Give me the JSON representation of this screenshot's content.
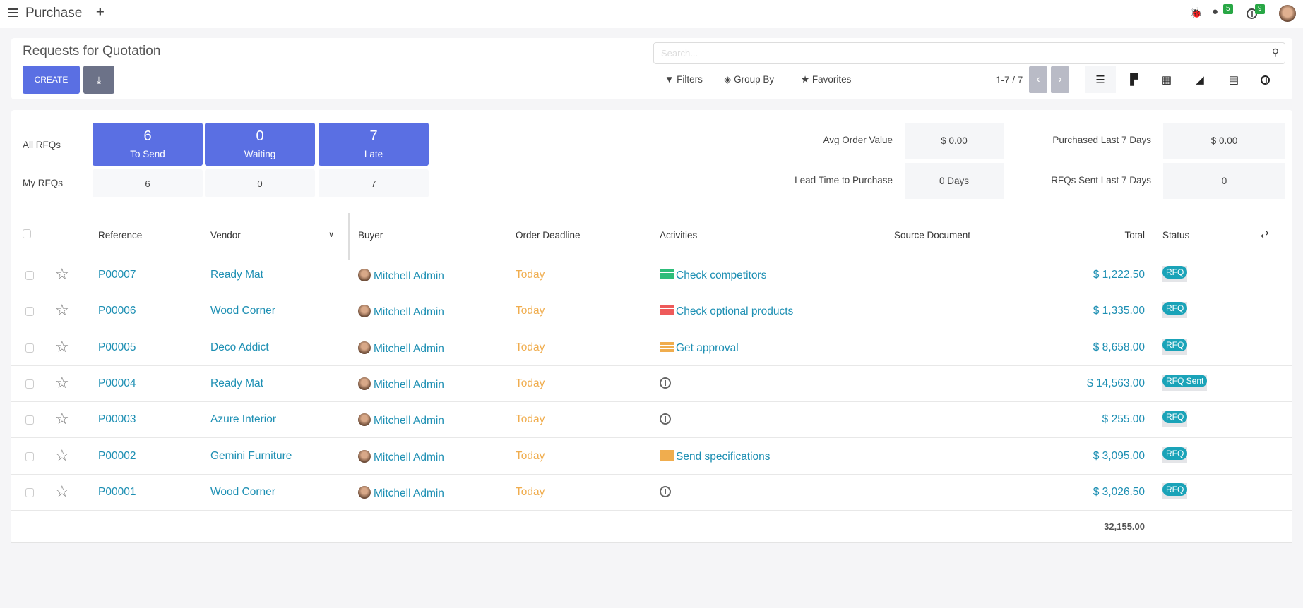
{
  "topbar": {
    "app_title": "Purchase",
    "messages_count": "5",
    "activities_count": "9"
  },
  "control": {
    "title": "Requests for Quotation",
    "create_label": "CREATE",
    "search_placeholder": "Search...",
    "filters": "Filters",
    "group_by": "Group By",
    "favorites": "Favorites",
    "pager": "1-7 / 7"
  },
  "dashboard": {
    "all_label": "All RFQs",
    "my_label": "My RFQs",
    "tiles": [
      {
        "count": "6",
        "label": "To Send",
        "my": "6"
      },
      {
        "count": "0",
        "label": "Waiting",
        "my": "0"
      },
      {
        "count": "7",
        "label": "Late",
        "my": "7"
      }
    ],
    "stats": [
      {
        "label": "Avg Order Value",
        "value": "$ 0.00"
      },
      {
        "label": "Purchased Last 7 Days",
        "value": "$ 0.00"
      },
      {
        "label": "Lead Time to Purchase",
        "value": "0 Days"
      },
      {
        "label": "RFQs Sent Last 7 Days",
        "value": "0"
      }
    ]
  },
  "table": {
    "headers": {
      "reference": "Reference",
      "vendor": "Vendor",
      "buyer": "Buyer",
      "deadline": "Order Deadline",
      "activities": "Activities",
      "source": "Source Document",
      "total": "Total",
      "status": "Status"
    },
    "rows": [
      {
        "ref": "P00007",
        "vendor": "Ready Mat",
        "buyer": "Mitchell Admin",
        "deadline": "Today",
        "activity": "Check competitors",
        "activity_icon": "todo-list-icon",
        "activity_color": "#2dbd7a",
        "total": "$ 1,222.50",
        "status": "RFQ"
      },
      {
        "ref": "P00006",
        "vendor": "Wood Corner",
        "buyer": "Mitchell Admin",
        "deadline": "Today",
        "activity": "Check optional products",
        "activity_icon": "todo-list-icon",
        "activity_color": "#ee5a5a",
        "total": "$ 1,335.00",
        "status": "RFQ"
      },
      {
        "ref": "P00005",
        "vendor": "Deco Addict",
        "buyer": "Mitchell Admin",
        "deadline": "Today",
        "activity": "Get approval",
        "activity_icon": "todo-list-icon",
        "activity_color": "#f0ad4e",
        "total": "$ 8,658.00",
        "status": "RFQ"
      },
      {
        "ref": "P00004",
        "vendor": "Ready Mat",
        "buyer": "Mitchell Admin",
        "deadline": "Today",
        "activity": "",
        "activity_icon": "clock-icon",
        "total": "$ 14,563.00",
        "status": "RFQ Sent"
      },
      {
        "ref": "P00003",
        "vendor": "Azure Interior",
        "buyer": "Mitchell Admin",
        "deadline": "Today",
        "activity": "",
        "activity_icon": "clock-icon",
        "total": "$ 255.00",
        "status": "RFQ"
      },
      {
        "ref": "P00002",
        "vendor": "Gemini Furniture",
        "buyer": "Mitchell Admin",
        "deadline": "Today",
        "activity": "Send specifications",
        "activity_icon": "envelope-icon",
        "activity_color": "#f0ad4e",
        "total": "$ 3,095.00",
        "status": "RFQ"
      },
      {
        "ref": "P00001",
        "vendor": "Wood Corner",
        "buyer": "Mitchell Admin",
        "deadline": "Today",
        "activity": "",
        "activity_icon": "clock-icon",
        "total": "$ 3,026.50",
        "status": "RFQ"
      }
    ],
    "grand_total": "32,155.00"
  }
}
